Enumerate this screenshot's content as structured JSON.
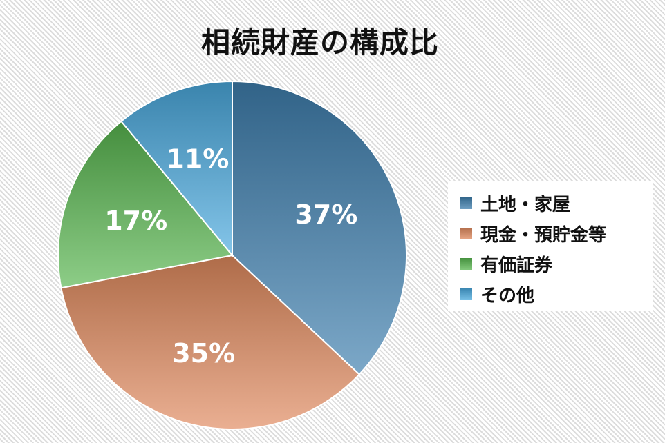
{
  "colors": {
    "series": [
      "#3f7fae",
      "#e08a5e",
      "#58b64f",
      "#4aa9de"
    ]
  },
  "chart_data": {
    "type": "pie",
    "title": "相続財産の構成比",
    "categories": [
      "土地・家屋",
      "現金・預貯金等",
      "有価証券",
      "その他"
    ],
    "values": [
      37,
      35,
      17,
      11
    ],
    "labels": [
      "37%",
      "35%",
      "17%",
      "11%"
    ],
    "legend_position": "right"
  }
}
